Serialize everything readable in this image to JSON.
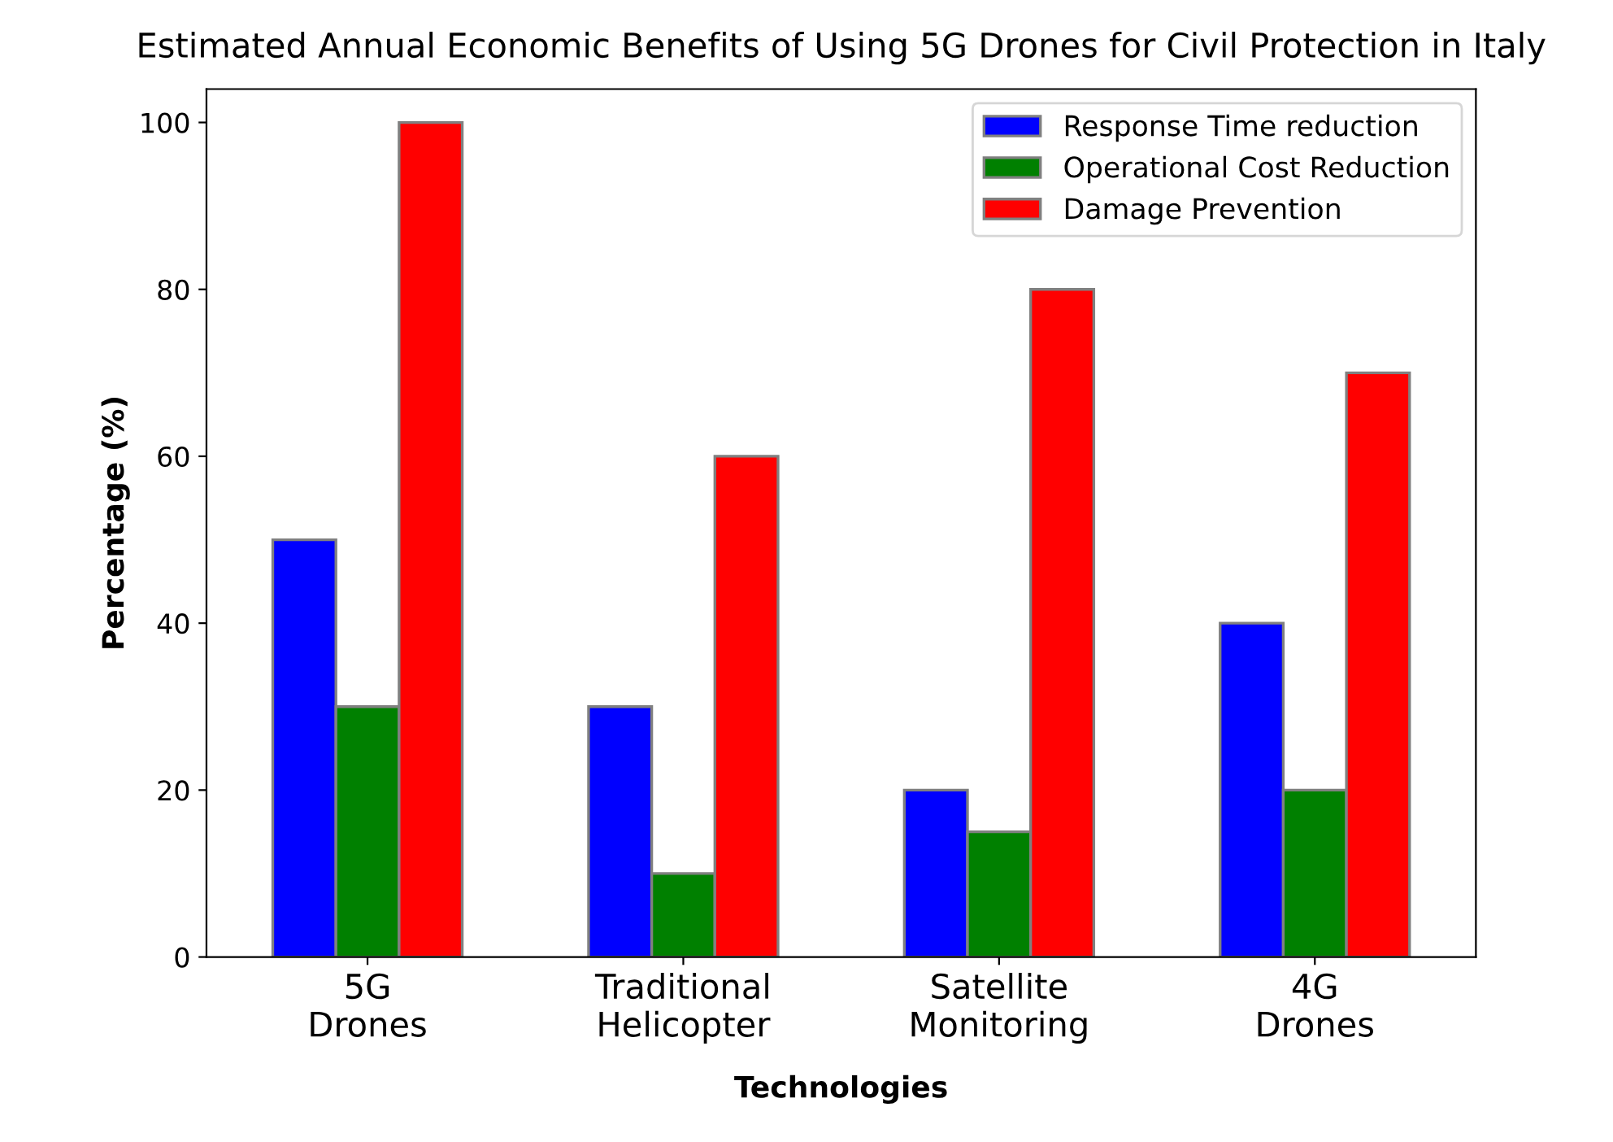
{
  "chart_data": {
    "type": "bar",
    "title": "Estimated Annual Economic Benefits of Using 5G Drones for Civil Protection in Italy",
    "xlabel": "Technologies",
    "ylabel": "Percentage (%)",
    "categories": [
      "5G\nDrones",
      "Traditional\nHelicopter",
      "Satellite\nMonitoring",
      "4G\nDrones"
    ],
    "series": [
      {
        "name": "Response Time reduction",
        "color": "#0000ff",
        "values": [
          50,
          30,
          20,
          40
        ]
      },
      {
        "name": "Operational Cost Reduction",
        "color": "#008000",
        "values": [
          30,
          10,
          15,
          20
        ]
      },
      {
        "name": "Damage Prevention",
        "color": "#ff0000",
        "values": [
          100,
          60,
          80,
          70
        ]
      }
    ],
    "ylim": [
      0,
      104
    ],
    "yticks": [
      0,
      20,
      40,
      60,
      80,
      100
    ],
    "grid": false,
    "legend": "top right"
  }
}
